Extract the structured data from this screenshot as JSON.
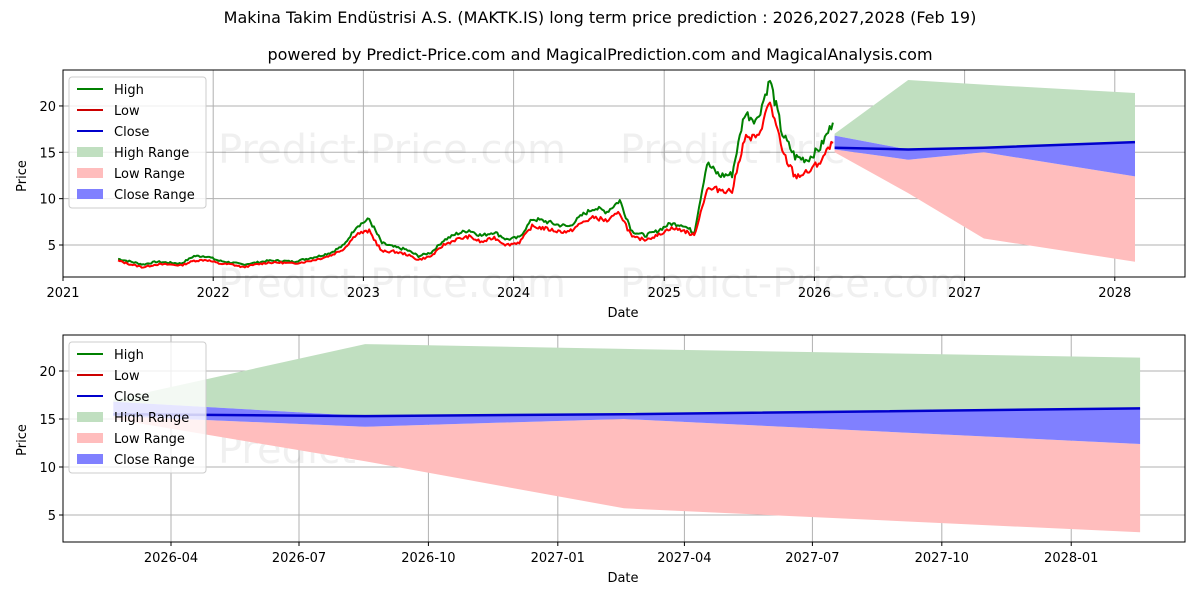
{
  "header": {
    "title": "Makina Takim Endüstrisi A.S. (MAKTK.IS) long term price prediction : 2026,2027,2028 (Feb 19)",
    "subtitle": "powered by Predict-Price.com and MagicalPrediction.com and MagicalAnalysis.com"
  },
  "watermark": "Predict-Price.com",
  "colors": {
    "high": "#008000",
    "low": "#ff0000",
    "close": "#0000cc",
    "high_range": "#c0dfc0",
    "low_range": "#ffbdbd",
    "close_range": "#8080ff",
    "grid": "#b0b0b0"
  },
  "legend": {
    "items": [
      {
        "label": "High",
        "type": "line",
        "color": "#008000"
      },
      {
        "label": "Low",
        "type": "line",
        "color": "#cc0000"
      },
      {
        "label": "Close",
        "type": "line",
        "color": "#0000cc"
      },
      {
        "label": "High Range",
        "type": "patch",
        "color": "#c0dfc0"
      },
      {
        "label": "Low Range",
        "type": "patch",
        "color": "#ffbdbd"
      },
      {
        "label": "Close Range",
        "type": "patch",
        "color": "#8080ff"
      }
    ]
  },
  "top_chart": {
    "xlabel": "Date",
    "ylabel": "Price",
    "xticks": [
      "2021",
      "2022",
      "2023",
      "2024",
      "2025",
      "2026",
      "2027",
      "2028"
    ],
    "yticks": [
      "5",
      "10",
      "15",
      "20"
    ]
  },
  "bottom_chart": {
    "xlabel": "Date",
    "ylabel": "Price",
    "xticks": [
      "2026-04",
      "2026-07",
      "2026-10",
      "2027-01",
      "2027-04",
      "2027-07",
      "2027-10",
      "2028-01"
    ],
    "yticks": [
      "5",
      "10",
      "15",
      "20"
    ]
  },
  "chart_data": [
    {
      "type": "line",
      "title": "Makina Takim Endüstrisi A.S. (MAKTK.IS) long term price prediction : 2026,2027,2028 (Feb 19)",
      "subtitle": "powered by Predict-Price.com and MagicalPrediction.com and MagicalAnalysis.com",
      "xlabel": "Date",
      "ylabel": "Price",
      "xlim": [
        "2021-01-01",
        "2028-06-01"
      ],
      "ylim": [
        1.5,
        24
      ],
      "grid": true,
      "legend_position": "upper left",
      "x": [
        "2021-05",
        "2021-06",
        "2021-07",
        "2021-08",
        "2021-09",
        "2021-10",
        "2021-11",
        "2021-12",
        "2022-01",
        "2022-02",
        "2022-03",
        "2022-04",
        "2022-05",
        "2022-06",
        "2022-07",
        "2022-08",
        "2022-09",
        "2022-10",
        "2022-11",
        "2022-12",
        "2023-01",
        "2023-02",
        "2023-03",
        "2023-04",
        "2023-05",
        "2023-06",
        "2023-07",
        "2023-08",
        "2023-09",
        "2023-10",
        "2023-11",
        "2023-12",
        "2024-01",
        "2024-02",
        "2024-03",
        "2024-04",
        "2024-05",
        "2024-06",
        "2024-07",
        "2024-08",
        "2024-09",
        "2024-10",
        "2024-11",
        "2024-12",
        "2025-01",
        "2025-02",
        "2025-03",
        "2025-04",
        "2025-05",
        "2025-06",
        "2025-07",
        "2025-08",
        "2025-09",
        "2025-10",
        "2025-11",
        "2025-12",
        "2026-01",
        "2026-02"
      ],
      "series": [
        {
          "name": "High",
          "values": [
            3.5,
            3.2,
            2.9,
            3.2,
            3.1,
            3.0,
            3.8,
            3.8,
            3.3,
            3.1,
            2.9,
            3.1,
            3.3,
            3.3,
            3.2,
            3.5,
            3.8,
            4.2,
            5.0,
            7.0,
            7.8,
            5.2,
            4.8,
            4.5,
            3.8,
            4.2,
            5.5,
            6.2,
            6.6,
            6.0,
            6.4,
            5.6,
            5.8,
            7.8,
            7.6,
            7.2,
            7.0,
            8.2,
            9.0,
            8.6,
            9.8,
            6.5,
            6.0,
            6.5,
            7.3,
            7.2,
            6.3,
            13.8,
            12.5,
            12.6,
            19.2,
            18.5,
            22.8,
            17.0,
            14.5,
            14.2,
            15.5,
            18.2
          ]
        },
        {
          "name": "Low",
          "values": [
            3.3,
            2.9,
            2.6,
            2.9,
            2.9,
            2.8,
            3.3,
            3.4,
            3.0,
            2.9,
            2.6,
            2.9,
            3.1,
            3.1,
            3.0,
            3.2,
            3.5,
            3.9,
            4.6,
            6.2,
            6.5,
            4.3,
            4.3,
            4.0,
            3.4,
            3.8,
            5.0,
            5.6,
            5.9,
            5.3,
            5.8,
            5.0,
            5.3,
            7.0,
            6.8,
            6.5,
            6.4,
            7.4,
            8.0,
            7.6,
            8.5,
            5.8,
            5.6,
            6.0,
            6.8,
            6.6,
            6.0,
            11.0,
            11.0,
            10.8,
            16.5,
            16.5,
            20.5,
            15.0,
            12.4,
            12.8,
            14.0,
            16.0
          ]
        }
      ]
    },
    {
      "type": "area",
      "title": "Forecast (2026-02 to 2028-02)",
      "xlabel": "Date",
      "ylabel": "Price",
      "xlim": [
        "2026-01-20",
        "2028-04-01"
      ],
      "ylim": [
        2.2,
        23.8
      ],
      "grid": true,
      "legend_position": "upper left",
      "x": [
        "2026-02-19",
        "2026-08-17",
        "2027-02-17",
        "2028-02-19"
      ],
      "series": [
        {
          "name": "Close",
          "values": [
            15.5,
            15.3,
            15.5,
            16.1
          ]
        },
        {
          "name": "High Range",
          "upper": [
            17.0,
            22.8,
            22.3,
            21.4
          ],
          "lower": [
            16.8,
            15.3,
            15.5,
            16.1
          ]
        },
        {
          "name": "Low Range",
          "upper": [
            15.3,
            14.2,
            15.0,
            12.4
          ],
          "lower": [
            15.0,
            10.6,
            5.7,
            3.2
          ]
        },
        {
          "name": "Close Range",
          "upper": [
            16.8,
            15.3,
            15.5,
            16.1
          ],
          "lower": [
            15.3,
            14.2,
            15.0,
            12.4
          ]
        }
      ]
    }
  ]
}
